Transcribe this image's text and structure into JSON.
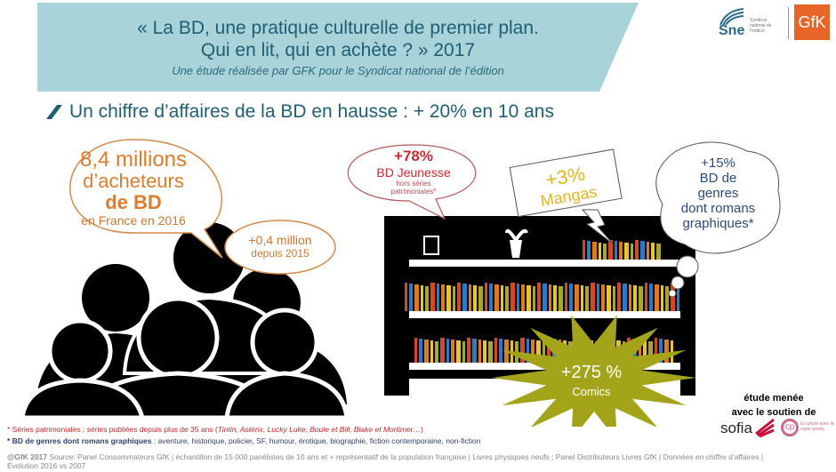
{
  "header": {
    "title_line1": "« La BD, une pratique culturelle de premier plan.",
    "title_line2": "Qui en lit, qui en achète ? » 2017",
    "subtitle": "Une étude réalisée par GFK pour le Syndicat national de l’édition"
  },
  "logos": {
    "sne": "Sne",
    "sne_text": "Syndicat national de l'édition",
    "gfk": "GfK"
  },
  "headline": "Un chiffre d’affaires de la BD en hausse :  + 20% en 10 ans",
  "buyers": {
    "line1": "8,4 millions",
    "line2": "d’acheteurs",
    "line3": "de BD",
    "line4": "en France en 2016"
  },
  "buyers_growth": {
    "value": "+0,4 million",
    "label": "depuis 2015"
  },
  "jeunesse": {
    "value": "+78%",
    "label": "BD Jeunesse",
    "note1": "hors séries",
    "note2": "patrimoniales*"
  },
  "mangas": {
    "value": "+3%",
    "label": "Mangas"
  },
  "genres": {
    "value": "+15%",
    "line1": "BD de",
    "line2": "genres",
    "line3": "dont romans",
    "line4": "graphiques*"
  },
  "comics": {
    "value": "+275 %",
    "label": "Comics"
  },
  "support": {
    "line1": "étude menée",
    "line2": "avec le soutien de",
    "sofia": "sofia",
    "cp": "la culture avec la copie privée"
  },
  "footnotes": {
    "f1_main": "* Séries patrimoniales : séries publiées depuis plus de 35 ans (",
    "f1_italic": "Tintin, Astérix, Lucky Luke, Boule et Bill, Blake et Mortimer…",
    "f1_end": ")",
    "f2_bold": "* BD de genres dont romans graphiques",
    "f2_rest": " : aventure, historique, policier, SF, humour, érotique, biographie, fiction contemporaine, non-fiction"
  },
  "source": {
    "bold": "@GfK 2017",
    "line1": " Source: Panel Consommateurs GfK | échantillon de 15 000 panélistes de 10 ans et + représentatif de la population française | Livres  physiques neufs ; Panel Distributeurs Livres GfK | Données en chiffre d’affaires |",
    "line2": "Évolution 2016 vs 2007"
  },
  "colors": {
    "banner": "#a8d3d8",
    "title": "#1f5f73",
    "orange": "#e07b2a",
    "red": "#d0282e",
    "gold": "#e3b51e",
    "navy": "#2c4a7a",
    "olive": "#a3a41a"
  }
}
